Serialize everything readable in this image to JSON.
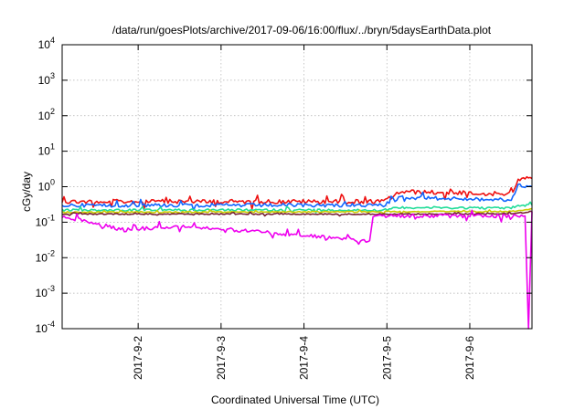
{
  "chart_data": {
    "type": "line",
    "title": "/data/run/goesPlots/archive/2017-09-06/16:00/flux/../bryn/5daysEarthData.plot",
    "xlabel": "Coordinated Universal Time (UTC)",
    "ylabel": "cGy/day",
    "yscale": "log",
    "ylim": [
      0.0001,
      10000
    ],
    "y_ticks": [
      {
        "value": 0.0001,
        "base": "10",
        "exp": "-4"
      },
      {
        "value": 0.001,
        "base": "10",
        "exp": "-3"
      },
      {
        "value": 0.01,
        "base": "10",
        "exp": "-2"
      },
      {
        "value": 0.1,
        "base": "10",
        "exp": "-1"
      },
      {
        "value": 1,
        "base": "10",
        "exp": "0"
      },
      {
        "value": 10,
        "base": "10",
        "exp": "1"
      },
      {
        "value": 100,
        "base": "10",
        "exp": "2"
      },
      {
        "value": 1000,
        "base": "10",
        "exp": "3"
      },
      {
        "value": 10000,
        "base": "10",
        "exp": "4"
      }
    ],
    "xlim": [
      "2017-09-01T02:00",
      "2017-09-06T18:00"
    ],
    "x_ticks": [
      {
        "value": "2017-09-02T00:00",
        "label": "2017-9-2"
      },
      {
        "value": "2017-09-03T00:00",
        "label": "2017-9-3"
      },
      {
        "value": "2017-09-04T00:00",
        "label": "2017-9-4"
      },
      {
        "value": "2017-09-05T00:00",
        "label": "2017-9-5"
      },
      {
        "value": "2017-09-06T00:00",
        "label": "2017-9-6"
      }
    ],
    "grid": true,
    "series": [
      {
        "color": "#ee1111",
        "values": [
          {
            "x": "2017-09-01T02:00",
            "y": 0.38
          },
          {
            "x": "2017-09-04T23:00",
            "y": 0.38
          },
          {
            "x": "2017-09-05T04:00",
            "y": 0.72
          },
          {
            "x": "2017-09-06T12:00",
            "y": 0.62
          },
          {
            "x": "2017-09-06T14:00",
            "y": 1.6
          },
          {
            "x": "2017-09-06T18:00",
            "y": 1.7
          }
        ]
      },
      {
        "color": "#1166ff",
        "values": [
          {
            "x": "2017-09-01T02:00",
            "y": 0.3
          },
          {
            "x": "2017-09-04T23:00",
            "y": 0.3
          },
          {
            "x": "2017-09-05T04:00",
            "y": 0.5
          },
          {
            "x": "2017-09-06T12:00",
            "y": 0.42
          },
          {
            "x": "2017-09-06T14:00",
            "y": 1.1
          },
          {
            "x": "2017-09-06T18:00",
            "y": 1.0
          }
        ]
      },
      {
        "color": "#22dd99",
        "values": [
          {
            "x": "2017-09-01T02:00",
            "y": 0.22
          },
          {
            "x": "2017-09-04T23:00",
            "y": 0.22
          },
          {
            "x": "2017-09-05T04:00",
            "y": 0.26
          },
          {
            "x": "2017-09-06T12:00",
            "y": 0.25
          },
          {
            "x": "2017-09-06T14:00",
            "y": 0.3
          },
          {
            "x": "2017-09-06T18:00",
            "y": 0.3
          }
        ]
      },
      {
        "color": "#cccc00",
        "values": [
          {
            "x": "2017-09-01T02:00",
            "y": 0.19
          },
          {
            "x": "2017-09-06T12:00",
            "y": 0.2
          },
          {
            "x": "2017-09-06T18:00",
            "y": 0.24
          }
        ]
      },
      {
        "color": "#772233",
        "values": [
          {
            "x": "2017-09-01T02:00",
            "y": 0.17
          },
          {
            "x": "2017-09-06T12:00",
            "y": 0.17
          },
          {
            "x": "2017-09-06T18:00",
            "y": 0.2
          }
        ]
      },
      {
        "color": "#ee00ee",
        "values": [
          {
            "x": "2017-09-01T02:00",
            "y": 0.15
          },
          {
            "x": "2017-09-01T20:00",
            "y": 0.06
          },
          {
            "x": "2017-09-02T12:00",
            "y": 0.08
          },
          {
            "x": "2017-09-04T19:00",
            "y": 0.03
          },
          {
            "x": "2017-09-04T20:00",
            "y": 0.15
          },
          {
            "x": "2017-09-06T16:00",
            "y": 0.15
          },
          {
            "x": "2017-09-06T17:00",
            "y": 0.0001
          },
          {
            "x": "2017-09-06T18:00",
            "y": 0.2
          }
        ]
      }
    ]
  }
}
